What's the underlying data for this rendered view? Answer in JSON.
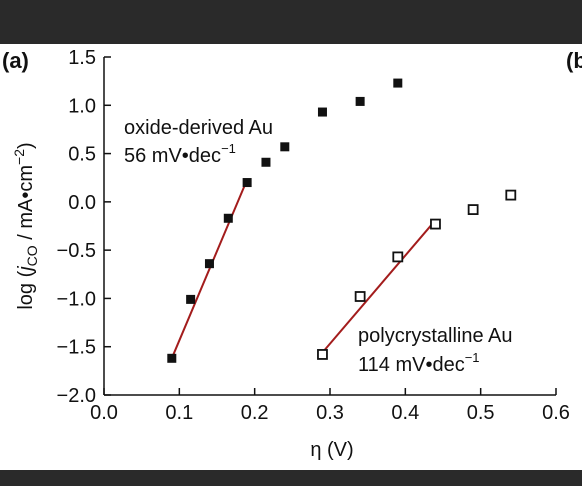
{
  "chart_data": {
    "type": "scatter",
    "panel_label": "(a)",
    "side_panel_label": "(b",
    "xlabel": "η (V)",
    "ylabel": {
      "prefix": "log (",
      "var": "j",
      "sub": "CO",
      "suffix": " / mA•cm",
      "sup": "−2",
      "close": ")"
    },
    "xlim": [
      0.0,
      0.6
    ],
    "ylim": [
      -2.0,
      1.5
    ],
    "xticks": [
      "0.0",
      "0.1",
      "0.2",
      "0.3",
      "0.4",
      "0.5",
      "0.6"
    ],
    "yticks": [
      "1.5",
      "1.0",
      "0.5",
      "0.0",
      "−0.5",
      "−1.0",
      "−1.5",
      "−2.0"
    ],
    "xtick_values": [
      0.0,
      0.1,
      0.2,
      0.3,
      0.4,
      0.5,
      0.6
    ],
    "ytick_values": [
      1.5,
      1.0,
      0.5,
      0.0,
      -0.5,
      -1.0,
      -1.5,
      -2.0
    ],
    "series": [
      {
        "name": "oxide-derived Au",
        "marker": "filled-square",
        "points": [
          {
            "x": 0.09,
            "y": -1.62
          },
          {
            "x": 0.115,
            "y": -1.01
          },
          {
            "x": 0.14,
            "y": -0.64
          },
          {
            "x": 0.165,
            "y": -0.17
          },
          {
            "x": 0.19,
            "y": 0.2
          },
          {
            "x": 0.215,
            "y": 0.41
          },
          {
            "x": 0.24,
            "y": 0.57
          },
          {
            "x": 0.29,
            "y": 0.93
          },
          {
            "x": 0.34,
            "y": 1.04
          },
          {
            "x": 0.39,
            "y": 1.23
          }
        ],
        "fit": {
          "x": [
            0.09,
            0.19
          ],
          "y": [
            -1.62,
            0.23
          ]
        },
        "annotation": {
          "name": "oxide-derived Au",
          "slope": "56 mV•dec",
          "slope_sup": "−1"
        }
      },
      {
        "name": "polycrystalline Au",
        "marker": "open-square",
        "points": [
          {
            "x": 0.29,
            "y": -1.58
          },
          {
            "x": 0.34,
            "y": -0.98
          },
          {
            "x": 0.39,
            "y": -0.57
          },
          {
            "x": 0.44,
            "y": -0.23
          },
          {
            "x": 0.49,
            "y": -0.08
          },
          {
            "x": 0.54,
            "y": 0.07
          }
        ],
        "fit": {
          "x": [
            0.29,
            0.44
          ],
          "y": [
            -1.56,
            -0.19
          ]
        },
        "annotation": {
          "name": "polycrystalline Au",
          "slope": "114 mV•dec",
          "slope_sup": "−1"
        }
      }
    ],
    "colors": {
      "fit_line": "#a31c1c",
      "marker": "#111111"
    },
    "grid": false,
    "legend": "none"
  }
}
